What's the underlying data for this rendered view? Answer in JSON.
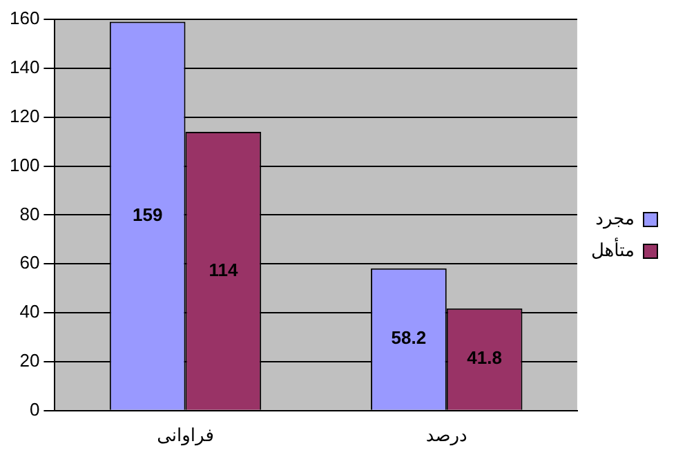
{
  "chart_data": {
    "type": "bar",
    "categories": [
      "فراوانی",
      "درصد"
    ],
    "series": [
      {
        "name": "مجرد",
        "color": "#9999ff",
        "values": [
          159,
          58.2
        ]
      },
      {
        "name": "متأهل",
        "color": "#993366",
        "values": [
          114,
          41.8
        ]
      }
    ],
    "ylim": [
      0,
      160
    ],
    "yticks": [
      0,
      20,
      40,
      60,
      80,
      100,
      120,
      140,
      160
    ],
    "grid": "y",
    "legend": "right",
    "data_labels": true
  }
}
